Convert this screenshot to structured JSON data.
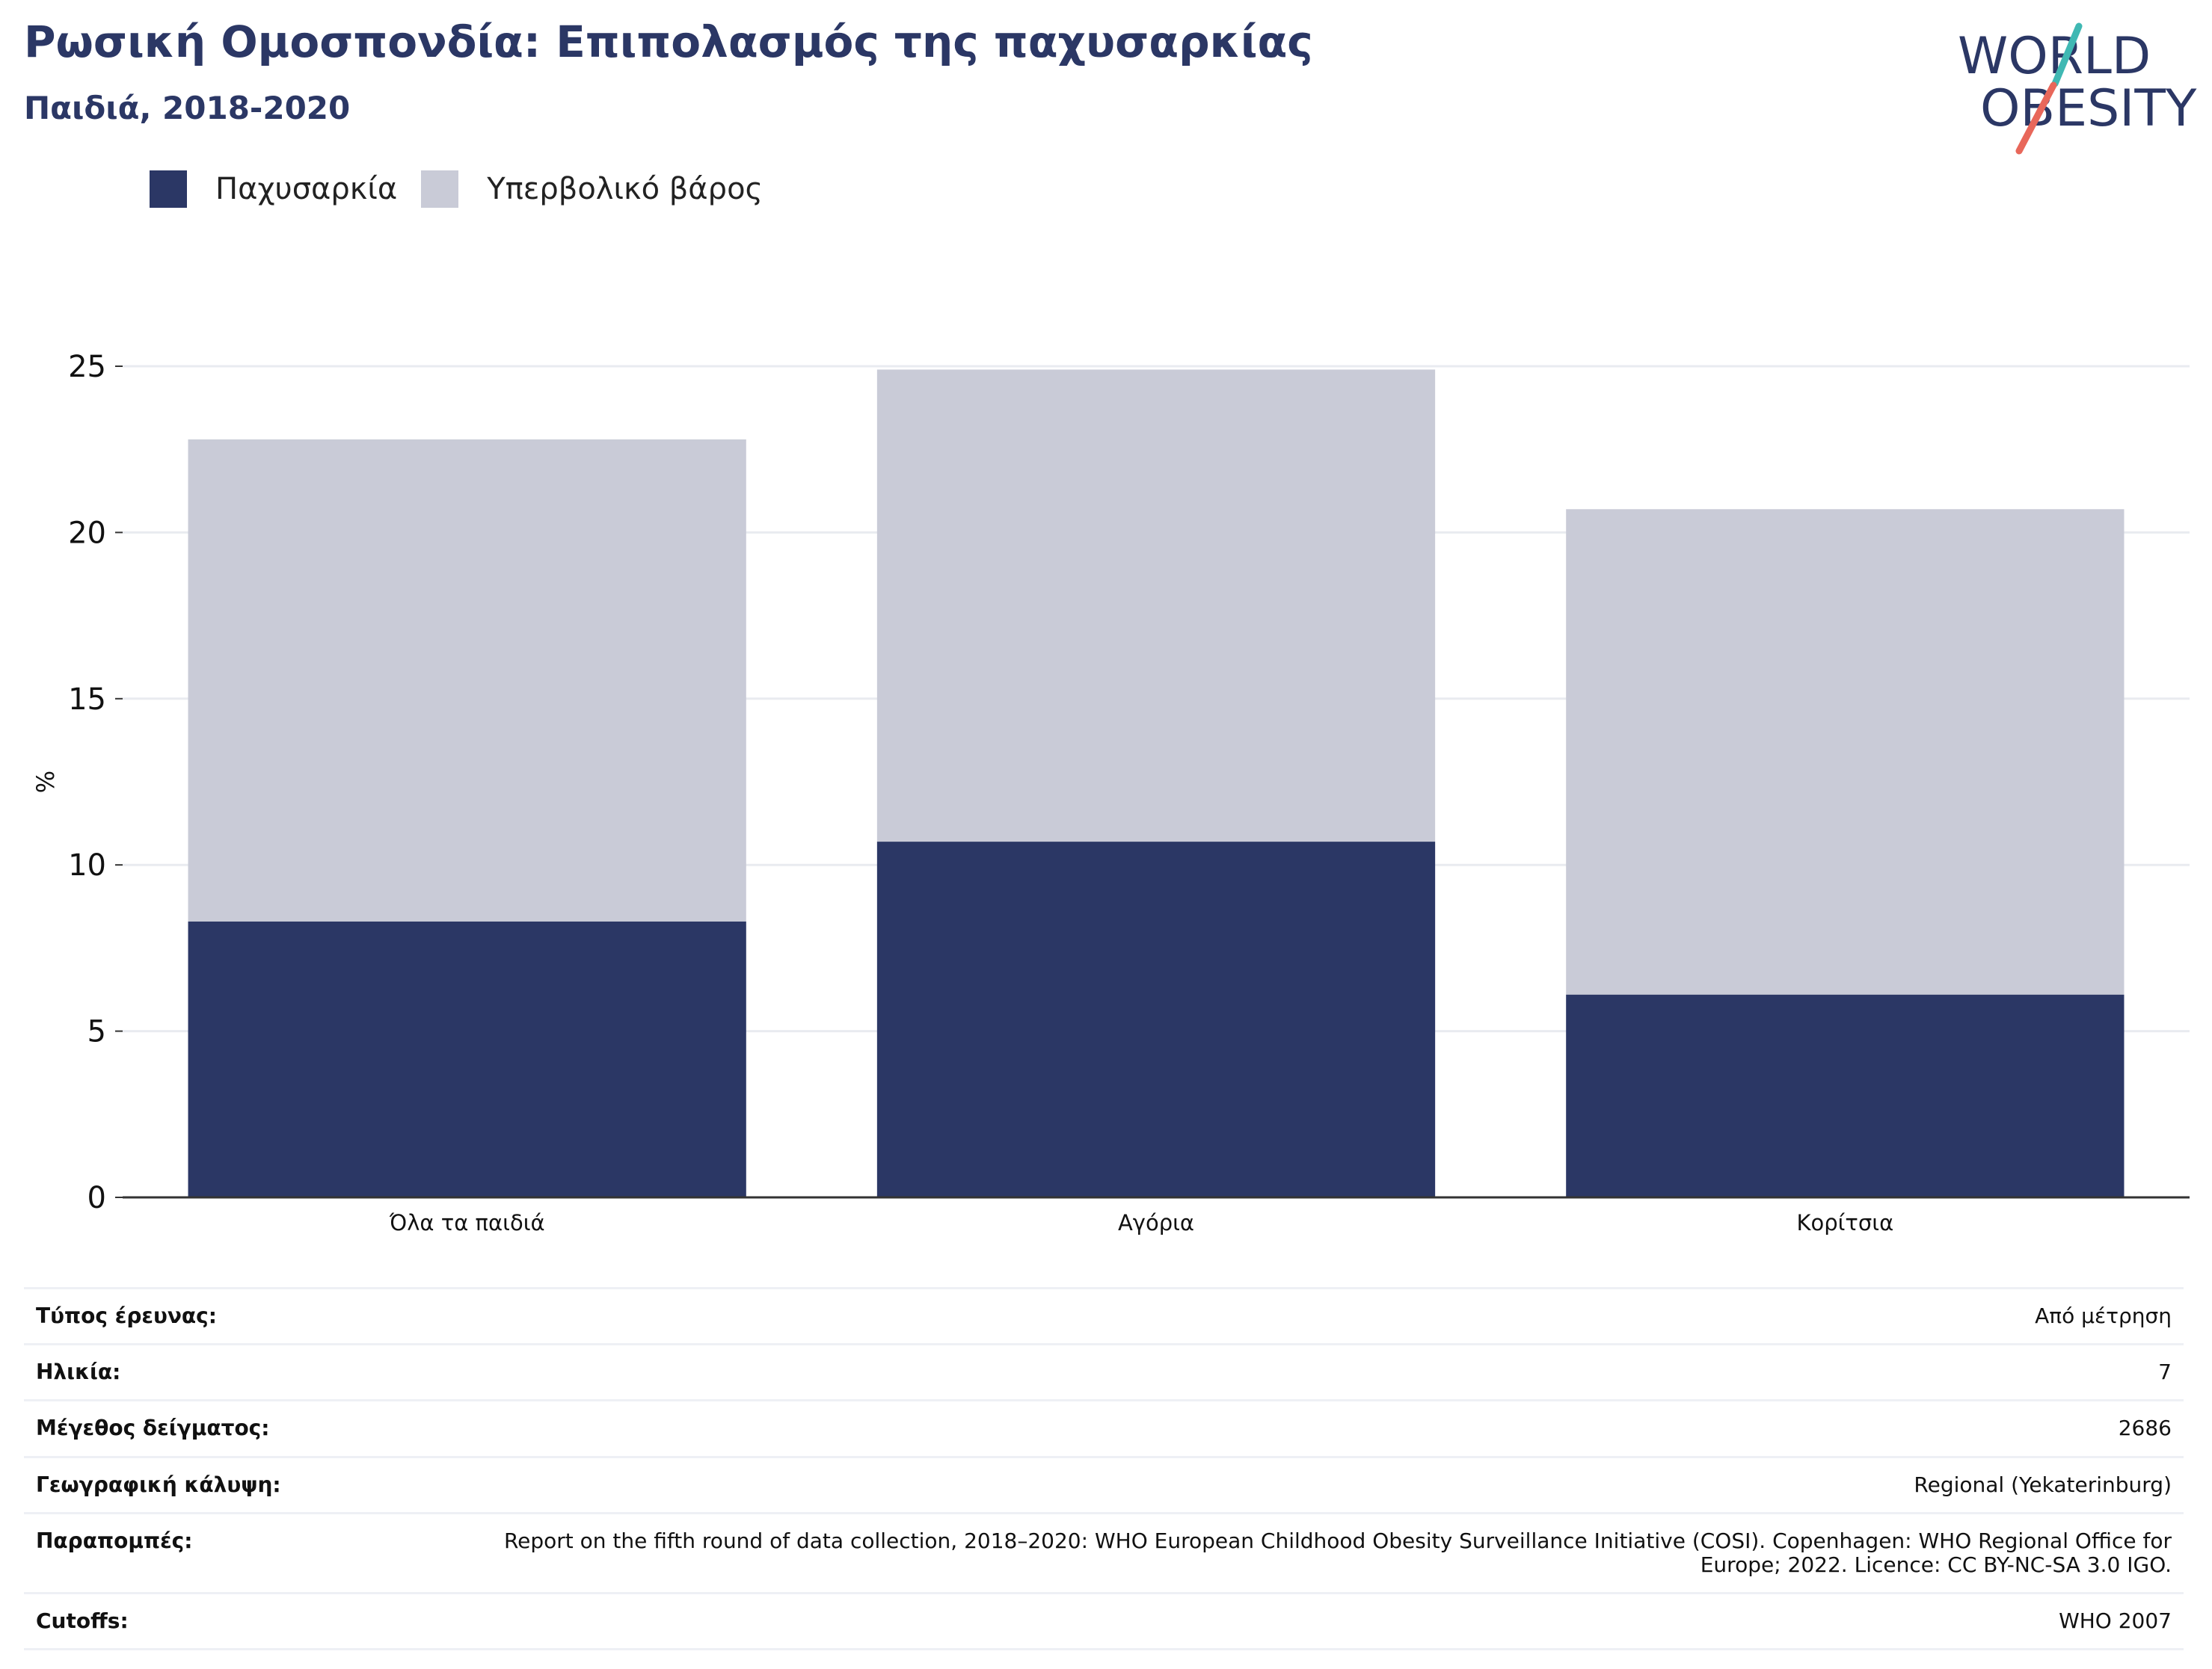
{
  "header": {
    "title": "Ρωσική Ομοσπονδία: Επιπολασμός της παχυσαρκίας",
    "subtitle": "Παιδιά, 2018-2020"
  },
  "logo": {
    "line1": "WORLD",
    "line2": "OBESITY",
    "colors": {
      "text": "#2b3765",
      "teal": "#3fb8b3",
      "coral": "#e8675a"
    }
  },
  "legend": [
    {
      "label": "Παχυσαρκία",
      "color": "#2b3765"
    },
    {
      "label": "Υπερβολικό βάρος",
      "color": "#c9cbd7"
    }
  ],
  "chart_data": {
    "type": "bar",
    "stacked": true,
    "categories": [
      "Όλα τα παιδιά",
      "Αγόρια",
      "Κορίτσια"
    ],
    "series": [
      {
        "name": "Παχυσαρκία",
        "values": [
          8.3,
          10.7,
          6.1
        ],
        "color": "#2b3765"
      },
      {
        "name": "Υπερβολικό βάρος",
        "values": [
          14.5,
          14.2,
          14.6
        ],
        "color": "#c9cbd7"
      }
    ],
    "ylabel": "%",
    "ylim": [
      0,
      25
    ],
    "yticks": [
      "0",
      "5",
      "10",
      "15",
      "20",
      "25"
    ],
    "grid": true,
    "legend_position": "top-left"
  },
  "info": [
    {
      "key": "Τύπος έρευνας:",
      "value": "Από μέτρηση"
    },
    {
      "key": "Ηλικία:",
      "value": "7"
    },
    {
      "key": "Μέγεθος δείγματος:",
      "value": "2686"
    },
    {
      "key": "Γεωγραφική κάλυψη:",
      "value": "Regional (Yekaterinburg)"
    },
    {
      "key": "Παραπομπές:",
      "value": "Report on the fifth round of data collection, 2018–2020: WHO European Childhood Obesity Surveillance Initiative (COSI). Copenhagen: WHO Regional Office for Europe; 2022. Licence: CC BY-NC-SA 3.0 IGO."
    },
    {
      "key": "Cutoffs:",
      "value": "WHO 2007"
    }
  ]
}
